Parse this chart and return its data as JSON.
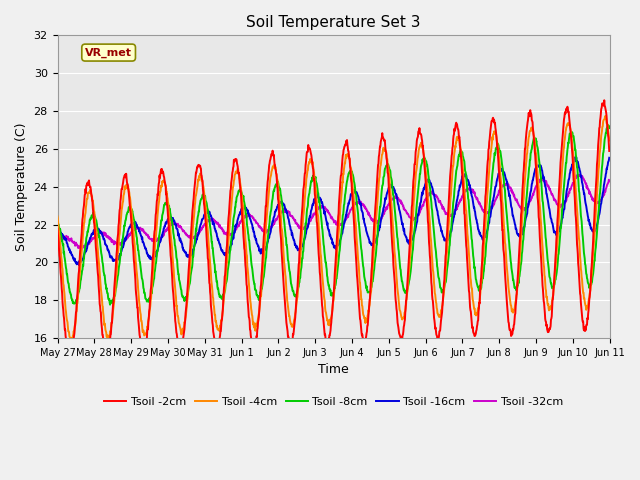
{
  "title": "Soil Temperature Set 3",
  "xlabel": "Time",
  "ylabel": "Soil Temperature (C)",
  "ylim": [
    16,
    32
  ],
  "annotation": "VR_met",
  "fig_facecolor": "#f0f0f0",
  "ax_facecolor": "#e8e8e8",
  "grid_color": "#ffffff",
  "series_colors": [
    "#ff0000",
    "#ff8800",
    "#00cc00",
    "#0000dd",
    "#cc00cc"
  ],
  "series_labels": [
    "Tsoil -2cm",
    "Tsoil -4cm",
    "Tsoil -8cm",
    "Tsoil -16cm",
    "Tsoil -32cm"
  ],
  "series_lw": [
    1.4,
    1.4,
    1.4,
    1.4,
    1.4
  ],
  "xtick_labels": [
    "May 27",
    "May 28",
    "May 29",
    "May 30",
    "May 31",
    "Jun 1",
    "Jun 2",
    "Jun 3",
    "Jun 4",
    "Jun 5",
    "Jun 6",
    "Jun 7",
    "Jun 8",
    "Jun 9",
    "Jun 10",
    "Jun 11"
  ],
  "ytick_labels": [
    16,
    18,
    20,
    22,
    24,
    26,
    28,
    30,
    32
  ],
  "n_days": 15
}
